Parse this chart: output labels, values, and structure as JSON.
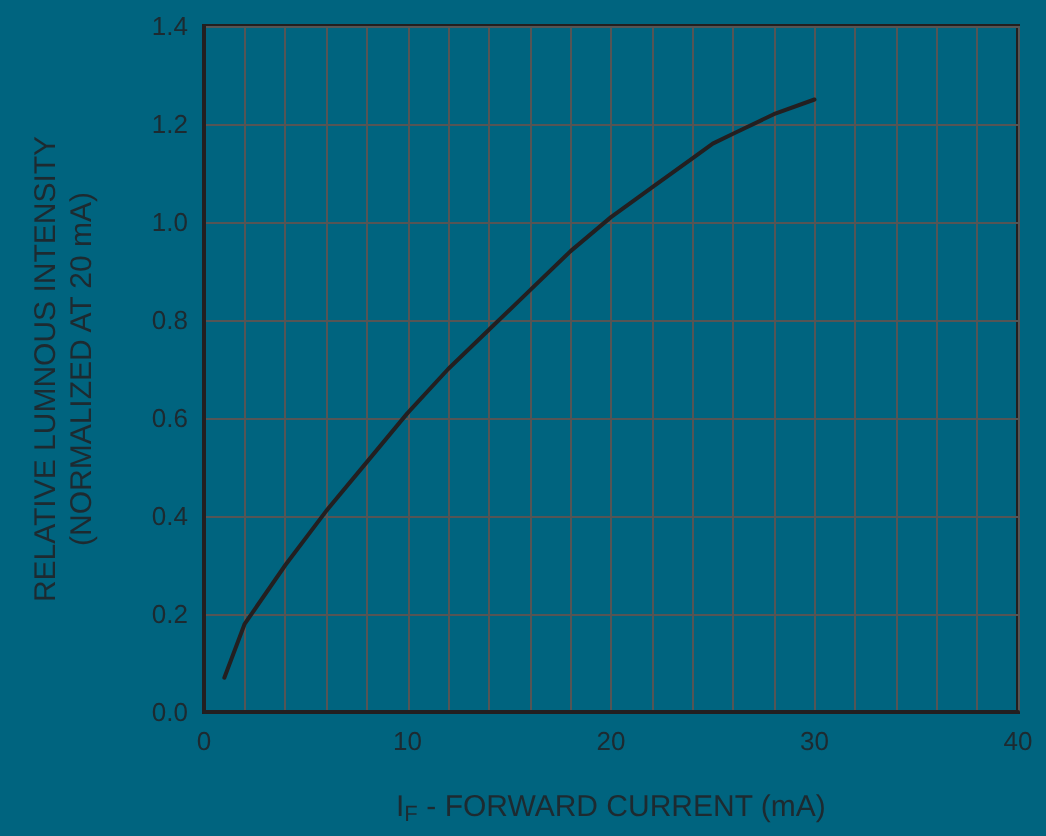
{
  "chart_data": {
    "type": "line",
    "xlabel": "I$_{F}$ - FORWARD CURRENT (mA)",
    "ylabel": "RELATIVE LUMNOUS INTENSITY\n(NORMALIZED AT 20 mA)",
    "x": [
      1,
      2,
      4,
      6,
      8,
      10,
      12,
      14,
      16,
      18,
      20,
      22,
      24,
      25,
      26,
      28,
      30
    ],
    "series": [
      {
        "color": "#231f20",
        "values": [
          0.07,
          0.18,
          0.3,
          0.41,
          0.51,
          0.61,
          0.7,
          0.78,
          0.86,
          0.94,
          1.01,
          1.07,
          1.13,
          1.16,
          1.18,
          1.22,
          1.25
        ]
      }
    ],
    "xlim": [
      0,
      40
    ],
    "xticks": [
      0,
      10,
      20,
      30,
      40
    ],
    "ylim": [
      0,
      1.4
    ],
    "yticks": [
      {
        "value": 0,
        "label": "0.0"
      },
      0.2,
      0.4,
      0.6,
      0.8,
      {
        "value": 1,
        "label": "1.0"
      },
      1.2,
      1.4
    ],
    "grid": true,
    "marker": "none",
    "line_style": "solid"
  }
}
